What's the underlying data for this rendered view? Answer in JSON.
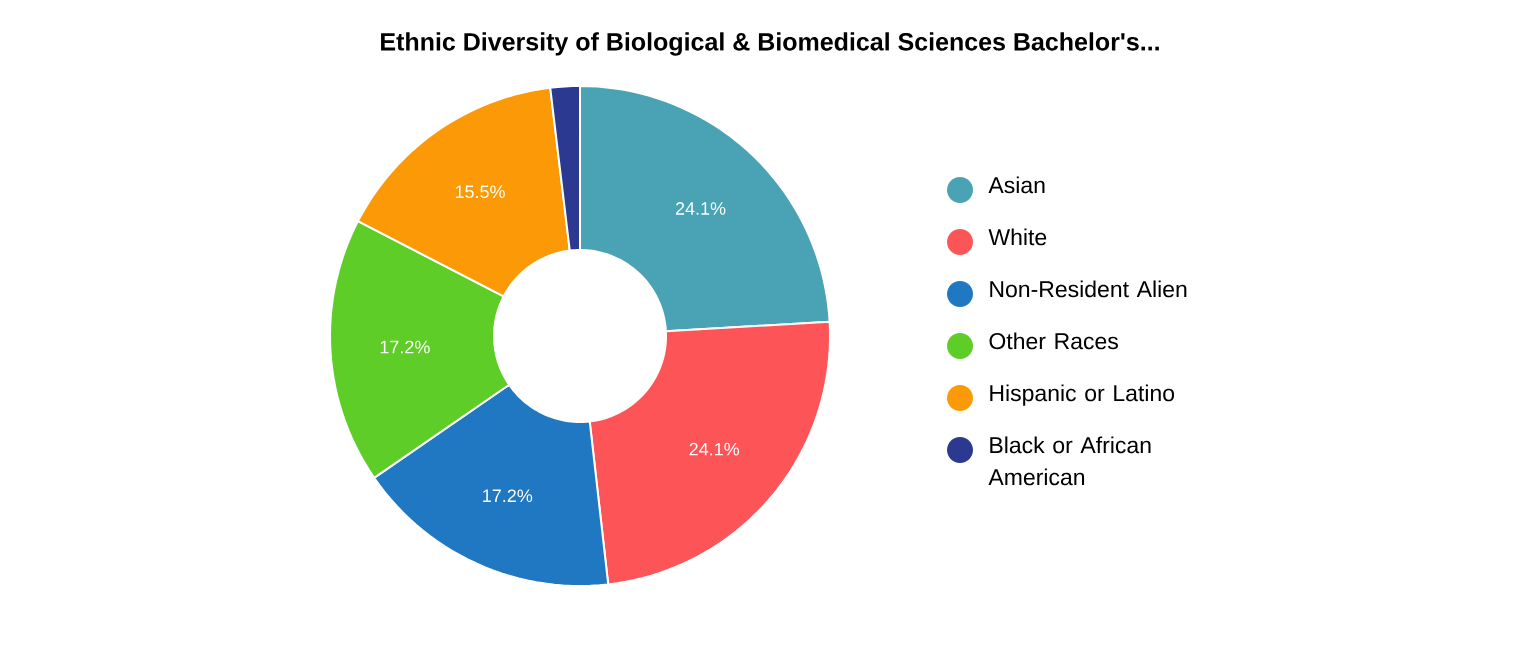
{
  "chart_data": {
    "type": "donut",
    "title": "Ethnic Diversity of Biological & Biomedical Sciences Bachelor's...",
    "categories": [
      "Asian",
      "White",
      "Non-Resident Alien",
      "Other Races",
      "Hispanic or Latino",
      "Black or African American"
    ],
    "values": [
      24.1,
      24.1,
      17.2,
      17.2,
      15.5,
      1.9
    ],
    "value_labels": [
      "24.1%",
      "24.1%",
      "17.2%",
      "17.2%",
      "15.5%",
      null
    ],
    "colors": [
      "#4aa3b5",
      "#fd5457",
      "#1f78c1",
      "#5fcd28",
      "#fb9a06",
      "#2b3990"
    ],
    "legend": "right"
  }
}
